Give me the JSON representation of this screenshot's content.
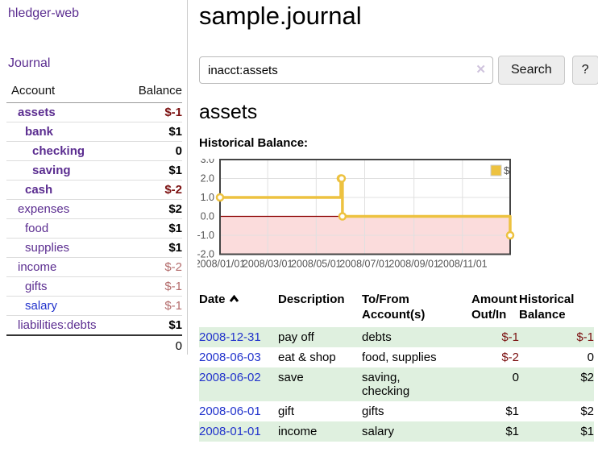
{
  "sidebar": {
    "app_title": "hledger-web",
    "journal_link": "Journal",
    "accounts_table": {
      "headers": {
        "account": "Account",
        "balance": "Balance"
      },
      "rows": [
        {
          "name": "assets",
          "balance": "$-1",
          "level": 0,
          "in_query": true,
          "balance_style": "negative-strong"
        },
        {
          "name": "bank",
          "balance": "$1",
          "level": 1,
          "in_query": true,
          "balance_style": "normal"
        },
        {
          "name": "checking",
          "balance": "0",
          "level": 2,
          "in_query": true,
          "balance_style": "normal"
        },
        {
          "name": "saving",
          "balance": "$1",
          "level": 2,
          "in_query": true,
          "balance_style": "normal"
        },
        {
          "name": "cash",
          "balance": "$-2",
          "level": 1,
          "in_query": true,
          "balance_style": "negative-strong"
        },
        {
          "name": "expenses",
          "balance": "$2",
          "level": 0,
          "in_query": false,
          "balance_style": "normal"
        },
        {
          "name": "food",
          "balance": "$1",
          "level": 1,
          "in_query": false,
          "balance_style": "normal"
        },
        {
          "name": "supplies",
          "balance": "$1",
          "level": 1,
          "in_query": false,
          "balance_style": "normal"
        },
        {
          "name": "income",
          "balance": "$-2",
          "level": 0,
          "in_query": false,
          "balance_style": "negative-muted"
        },
        {
          "name": "gifts",
          "balance": "$-1",
          "level": 1,
          "in_query": false,
          "balance_style": "negative-muted"
        },
        {
          "name": "salary",
          "balance": "$-1",
          "level": 1,
          "in_query": false,
          "balance_style": "negative-muted",
          "link_style": "blue"
        },
        {
          "name": "liabilities:debts",
          "balance": "$1",
          "level": 0,
          "in_query": false,
          "balance_style": "normal"
        }
      ],
      "total": "0"
    }
  },
  "header": {
    "title": "sample.journal"
  },
  "search": {
    "query": "inacct:assets",
    "clear_icon": "✕",
    "button_label": "Search",
    "help_label": "?"
  },
  "account_page": {
    "heading": "assets",
    "chart_label": "Historical Balance:"
  },
  "chart_data": {
    "type": "line",
    "step": true,
    "title": "Historical Balance",
    "series": [
      {
        "name": "$",
        "color": "#edc240",
        "points": [
          [
            "2008-01-01",
            1
          ],
          [
            "2008-06-01",
            2
          ],
          [
            "2008-06-02",
            2
          ],
          [
            "2008-06-03",
            0
          ],
          [
            "2008-12-31",
            -1
          ]
        ]
      }
    ],
    "xlim": [
      "2008-01-01",
      "2008-12-31"
    ],
    "ylim": [
      -2,
      3
    ],
    "yticks": [
      3.0,
      2.0,
      1.0,
      0.0,
      -1.0,
      -2.0
    ],
    "xticks": [
      "2008/01/01",
      "2008/03/01",
      "2008/05/01",
      "2008/07/01",
      "2008/09/01",
      "2008/11/01"
    ],
    "grid": true,
    "legend": {
      "label": "$",
      "position": "top-right"
    },
    "negative_region": true
  },
  "register_table": {
    "headers": {
      "date": "Date",
      "description": "Description",
      "accounts": "To/From Account(s)",
      "amount": "Amount Out/In",
      "balance": "Historical Balance"
    },
    "rows": [
      {
        "date": "2008-12-31",
        "description": "pay off",
        "accounts": "debts",
        "amount": "$-1",
        "balance": "$-1",
        "amount_negative": true,
        "balance_negative": true
      },
      {
        "date": "2008-06-03",
        "description": "eat & shop",
        "accounts": "food, supplies",
        "amount": "$-2",
        "balance": "0",
        "amount_negative": true,
        "balance_negative": false
      },
      {
        "date": "2008-06-02",
        "description": "save",
        "accounts": "saving, checking",
        "amount": "0",
        "balance": "$2",
        "amount_negative": false,
        "balance_negative": false
      },
      {
        "date": "2008-06-01",
        "description": "gift",
        "accounts": "gifts",
        "amount": "$1",
        "balance": "$2",
        "amount_negative": false,
        "balance_negative": false
      },
      {
        "date": "2008-01-01",
        "description": "income",
        "accounts": "salary",
        "amount": "$1",
        "balance": "$1",
        "amount_negative": false,
        "balance_negative": false
      }
    ]
  },
  "colors": {
    "purple": "#5b2d90",
    "blue": "#2233cc",
    "negative": "#7b1010",
    "negative_muted": "#b36b6b",
    "stripe_green": "#dff0df",
    "chart_line": "#edc240",
    "chart_negative_fill": "#fbdcdc",
    "chart_zero_line": "#8b0000",
    "chart_border": "#444444",
    "chart_grid": "#e0e0e0",
    "chart_tick_text": "#545454"
  }
}
